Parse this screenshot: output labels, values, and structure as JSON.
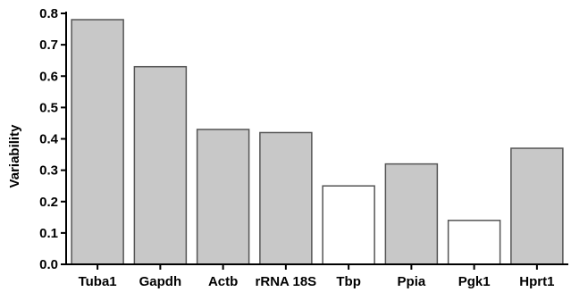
{
  "chart_data": {
    "type": "bar",
    "title": "",
    "xlabel": "",
    "ylabel": "Variability",
    "ylim": [
      0,
      0.8
    ],
    "yticks": [
      "0.0",
      "0.1",
      "0.2",
      "0.3",
      "0.4",
      "0.5",
      "0.6",
      "0.7",
      "0.8"
    ],
    "categories": [
      "Tuba1",
      "Gapdh",
      "Actb",
      "rRNA 18S",
      "Tbp",
      "Ppia",
      "Pgk1",
      "Hprt1"
    ],
    "values": [
      0.78,
      0.63,
      0.43,
      0.42,
      0.25,
      0.32,
      0.14,
      0.37
    ],
    "bar_colors": [
      "#c8c8c8",
      "#c8c8c8",
      "#c8c8c8",
      "#c8c8c8",
      "#ffffff",
      "#c8c8c8",
      "#ffffff",
      "#c8c8c8"
    ],
    "grid": false,
    "legend": "none"
  }
}
